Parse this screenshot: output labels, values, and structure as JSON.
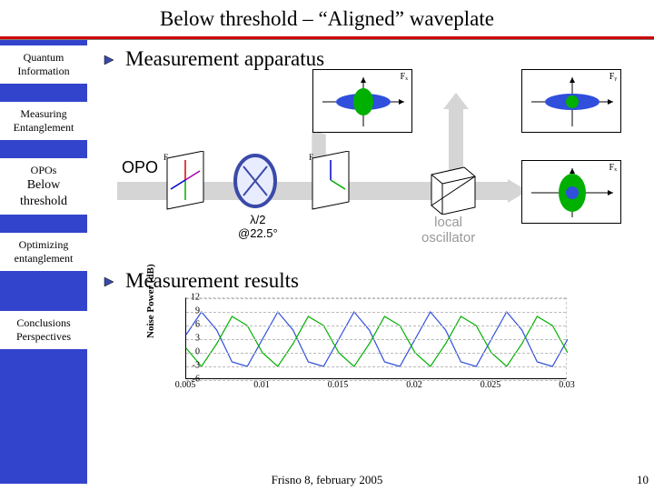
{
  "slide": {
    "title": "Below threshold – “Aligned” waveplate",
    "footer": "Frisno 8, february 2005",
    "page": "10"
  },
  "sidebar": {
    "items": [
      {
        "line1": "Quantum",
        "line2": "Information"
      },
      {
        "line1": "Measuring",
        "line2": "Entanglement"
      },
      {
        "line1": "OPOs",
        "sub1": "Below",
        "sub2": "threshold"
      },
      {
        "line1": "Optimizing",
        "line2": "entanglement"
      },
      {
        "line1": "Conclusions",
        "line2": "Perspectives"
      }
    ]
  },
  "headings": {
    "apparatus": "Measurement apparatus",
    "results": "Measurement results"
  },
  "apparatus": {
    "opo_label": "OPO",
    "waveplate_line1": "λ/2",
    "waveplate_line2": "@22.5°",
    "lo_line1": "local",
    "lo_line2": "oscillator",
    "inset_labels": {
      "fx": "Fₓ",
      "fy": "Fᵧ"
    },
    "inset_top_left": {
      "ellipse_color": "#2f4fdc",
      "dot_color": "#00b000",
      "bg": "#ffffff"
    },
    "inset_top_right": {
      "ellipse_color": "#2f4fdc",
      "dot_color": "#00b000",
      "bg": "#ffffff"
    },
    "inset_bottom_right": {
      "ellipse_color": "#00b000",
      "dot_color": "#2f4fdc",
      "bg": "#ffffff"
    },
    "optic_color": "#3a4aa8",
    "beamsplitter_edge": "#000000"
  },
  "chart": {
    "type": "line",
    "ylabel": "Noise Power (dB)",
    "ylim": [
      -6,
      12
    ],
    "yticks": [
      -6,
      -3,
      0,
      3,
      6,
      9,
      12
    ],
    "xlim": [
      0.005,
      0.03
    ],
    "xticks": [
      0.005,
      0.01,
      0.015,
      0.02,
      0.025,
      0.03
    ],
    "grid_color": "#cccccc",
    "background_color": "#ffffff",
    "series": [
      {
        "name": "blue",
        "color": "#2f4fdc",
        "stroke_width": 1.2,
        "data": [
          [
            0.005,
            4
          ],
          [
            0.006,
            9
          ],
          [
            0.007,
            5
          ],
          [
            0.008,
            -2
          ],
          [
            0.009,
            -3
          ],
          [
            0.01,
            3
          ],
          [
            0.011,
            9
          ],
          [
            0.012,
            5
          ],
          [
            0.013,
            -2
          ],
          [
            0.014,
            -3
          ],
          [
            0.015,
            3
          ],
          [
            0.016,
            9
          ],
          [
            0.017,
            5
          ],
          [
            0.018,
            -2
          ],
          [
            0.019,
            -3
          ],
          [
            0.02,
            3
          ],
          [
            0.021,
            9
          ],
          [
            0.022,
            5
          ],
          [
            0.023,
            -2
          ],
          [
            0.024,
            -3
          ],
          [
            0.025,
            3
          ],
          [
            0.026,
            9
          ],
          [
            0.027,
            5
          ],
          [
            0.028,
            -2
          ],
          [
            0.029,
            -3
          ],
          [
            0.03,
            3
          ]
        ]
      },
      {
        "name": "green",
        "color": "#00b000",
        "stroke_width": 1.2,
        "data": [
          [
            0.005,
            1
          ],
          [
            0.006,
            -3
          ],
          [
            0.007,
            2
          ],
          [
            0.008,
            8
          ],
          [
            0.009,
            6
          ],
          [
            0.01,
            0
          ],
          [
            0.011,
            -3
          ],
          [
            0.012,
            2
          ],
          [
            0.013,
            8
          ],
          [
            0.014,
            6
          ],
          [
            0.015,
            0
          ],
          [
            0.016,
            -3
          ],
          [
            0.017,
            2
          ],
          [
            0.018,
            8
          ],
          [
            0.019,
            6
          ],
          [
            0.02,
            0
          ],
          [
            0.021,
            -3
          ],
          [
            0.022,
            2
          ],
          [
            0.023,
            8
          ],
          [
            0.024,
            6
          ],
          [
            0.025,
            0
          ],
          [
            0.026,
            -3
          ],
          [
            0.027,
            2
          ],
          [
            0.028,
            8
          ],
          [
            0.029,
            6
          ],
          [
            0.03,
            0
          ]
        ]
      }
    ]
  }
}
